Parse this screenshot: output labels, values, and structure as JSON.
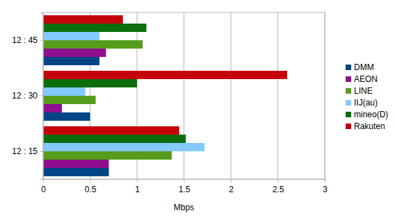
{
  "chart_data": {
    "type": "bar",
    "orientation": "horizontal",
    "categories": [
      "12 : 15",
      "12 : 30",
      "12 : 45"
    ],
    "series": [
      {
        "name": "DMM",
        "color": "#004586",
        "values": [
          0.7,
          0.5,
          0.6
        ]
      },
      {
        "name": "AEON",
        "color": "#8e0e8e",
        "values": [
          0.7,
          0.2,
          0.67
        ]
      },
      {
        "name": "LINE",
        "color": "#579d1c",
        "values": [
          1.37,
          0.56,
          1.06
        ]
      },
      {
        "name": "IIJ(au)",
        "color": "#83caff",
        "values": [
          1.72,
          0.45,
          0.6
        ]
      },
      {
        "name": "mineo(D)",
        "color": "#0b6e0b",
        "values": [
          1.52,
          1.0,
          1.1
        ]
      },
      {
        "name": "Rakuten",
        "color": "#c5000b",
        "values": [
          1.45,
          2.6,
          0.85
        ]
      }
    ],
    "x_label": "Mbps",
    "xlim": [
      0,
      3
    ],
    "xticks": [
      0,
      0.5,
      1,
      1.5,
      2,
      2.5,
      3
    ],
    "grid": true,
    "legend": "right"
  }
}
